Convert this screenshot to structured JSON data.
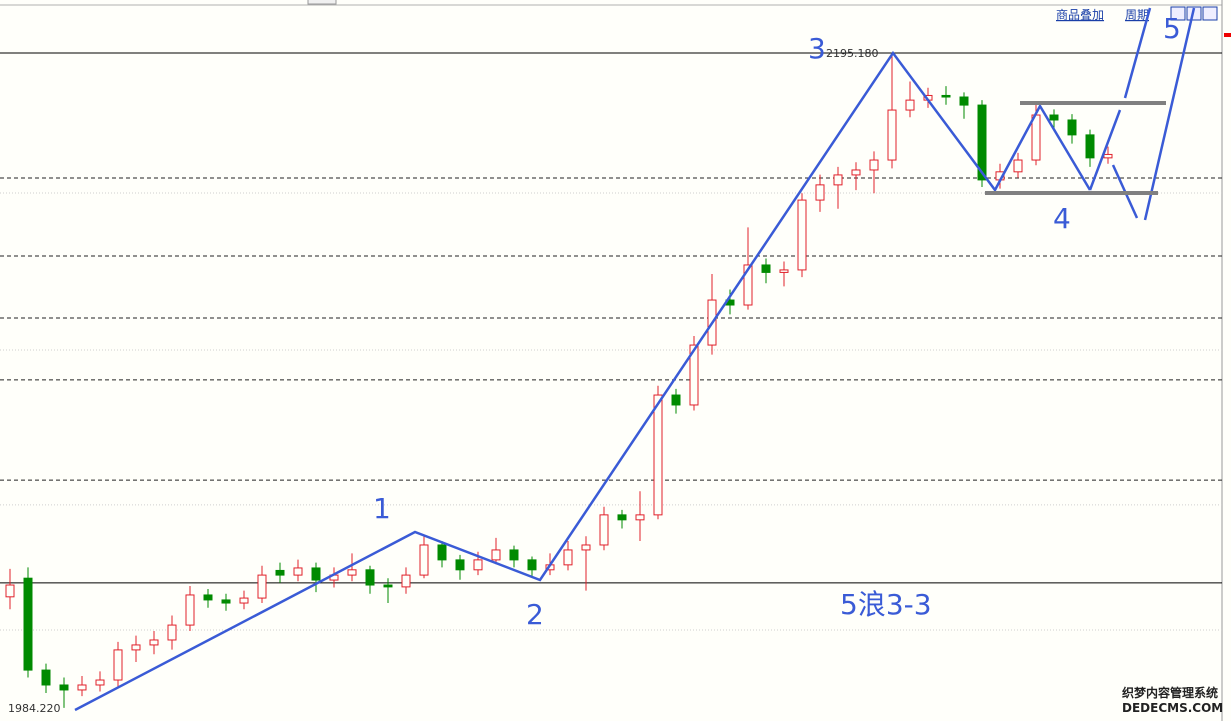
{
  "toolbar": {
    "overlay": "商品叠加",
    "period": "周期"
  },
  "watermark": {
    "cn": "织梦内容管理系统",
    "en": "DEDECMS.COM"
  },
  "chart_data": {
    "type": "candlestick",
    "up_color": "#e0202a",
    "down_color": "#008a00",
    "ylim": [
      1980.0,
      2212.25
    ],
    "levels": {
      "solid": [
        2195.18,
        2024.5
      ],
      "dashed": [
        2154.9,
        2129.8,
        2109.8,
        2089.9,
        2057.6
      ],
      "dotted": [
        2150.1,
        2099.5,
        2049.6,
        2009.3
      ]
    },
    "price_labels": [
      {
        "value": 2195.18,
        "label": "2195.180"
      },
      {
        "value": 1984.22,
        "label": "1984.220"
      }
    ],
    "wave_labels": [
      "1",
      "2",
      "3",
      "4",
      "5",
      "5浪3-3"
    ],
    "series": {
      "open": [
        2020.0,
        2026.0,
        1996.4,
        1991.6,
        1990.0,
        1991.6,
        1993.2,
        2002.9,
        2004.5,
        2006.1,
        2010.9,
        2020.6,
        2019.0,
        2018.0,
        2019.6,
        2028.5,
        2027.0,
        2029.3,
        2025.4,
        2027.0,
        2028.7,
        2023.8,
        2023.2,
        2027.0,
        2036.7,
        2031.9,
        2028.7,
        2031.9,
        2035.1,
        2031.9,
        2028.7,
        2030.3,
        2035.1,
        2036.7,
        2046.4,
        2044.8,
        2046.4,
        2085.0,
        2081.8,
        2101.1,
        2115.6,
        2114.0,
        2126.9,
        2124.5,
        2125.3,
        2147.8,
        2152.7,
        2155.9,
        2157.5,
        2160.7,
        2176.8,
        2180.0,
        2181.5,
        2181.0,
        2178.4,
        2154.3,
        2156.9,
        2160.7,
        2175.2,
        2173.6,
        2168.8,
        2161.4
      ],
      "high": [
        2029.0,
        2029.5,
        1998.5,
        1994.0,
        1994.5,
        1996.0,
        2005.5,
        2007.5,
        2009.0,
        2014.0,
        2023.5,
        2022.5,
        2021.0,
        2022.0,
        2030.0,
        2031.0,
        2032.0,
        2031.0,
        2029.5,
        2034.0,
        2030.0,
        2026.0,
        2029.5,
        2040.0,
        2038.0,
        2033.5,
        2034.5,
        2039.0,
        2036.5,
        2033.0,
        2034.0,
        2038.0,
        2039.5,
        2049.0,
        2048.0,
        2054.0,
        2088.0,
        2087.0,
        2104.0,
        2124.0,
        2119.0,
        2139.0,
        2129.0,
        2128.0,
        2150.0,
        2156.0,
        2158.5,
        2160.0,
        2163.5,
        2195.18,
        2186.0,
        2184.0,
        2184.5,
        2182.5,
        2180.0,
        2159.5,
        2163.0,
        2178.5,
        2177.0,
        2175.5,
        2170.5,
        2165.0
      ],
      "low": [
        2016.0,
        1994.0,
        1989.0,
        1984.22,
        1988.0,
        1989.5,
        1991.0,
        1999.0,
        2001.5,
        2003.0,
        2009.0,
        2016.5,
        2015.5,
        2016.0,
        2018.0,
        2024.5,
        2025.0,
        2021.5,
        2023.0,
        2025.0,
        2021.0,
        2018.0,
        2021.0,
        2026.0,
        2029.5,
        2025.5,
        2027.0,
        2030.5,
        2029.5,
        2026.5,
        2027.0,
        2028.5,
        2022.0,
        2035.0,
        2042.0,
        2038.0,
        2045.0,
        2079.0,
        2080.0,
        2098.0,
        2111.0,
        2112.5,
        2121.0,
        2120.0,
        2123.0,
        2144.0,
        2145.0,
        2151.0,
        2150.0,
        2158.0,
        2174.5,
        2177.5,
        2178.5,
        2174.0,
        2152.0,
        2151.5,
        2155.0,
        2159.0,
        2170.0,
        2166.0,
        2158.5,
        2159.5
      ],
      "close": [
        2023.8,
        1996.4,
        1991.6,
        1990.0,
        1991.6,
        1993.2,
        2002.9,
        2004.5,
        2006.1,
        2010.9,
        2020.6,
        2019.0,
        2018.0,
        2019.6,
        2027.0,
        2027.0,
        2029.3,
        2025.4,
        2027.0,
        2028.7,
        2023.8,
        2023.2,
        2027.0,
        2036.7,
        2031.9,
        2028.7,
        2031.9,
        2035.1,
        2031.9,
        2028.7,
        2030.3,
        2035.1,
        2036.7,
        2046.4,
        2044.8,
        2046.4,
        2085.0,
        2081.8,
        2101.1,
        2115.6,
        2114.0,
        2126.9,
        2124.5,
        2125.3,
        2147.8,
        2152.7,
        2155.9,
        2157.5,
        2160.7,
        2176.8,
        2180.0,
        2181.5,
        2181.0,
        2178.4,
        2154.3,
        2156.9,
        2160.7,
        2175.2,
        2173.6,
        2168.8,
        2161.4,
        2162.5
      ]
    }
  }
}
